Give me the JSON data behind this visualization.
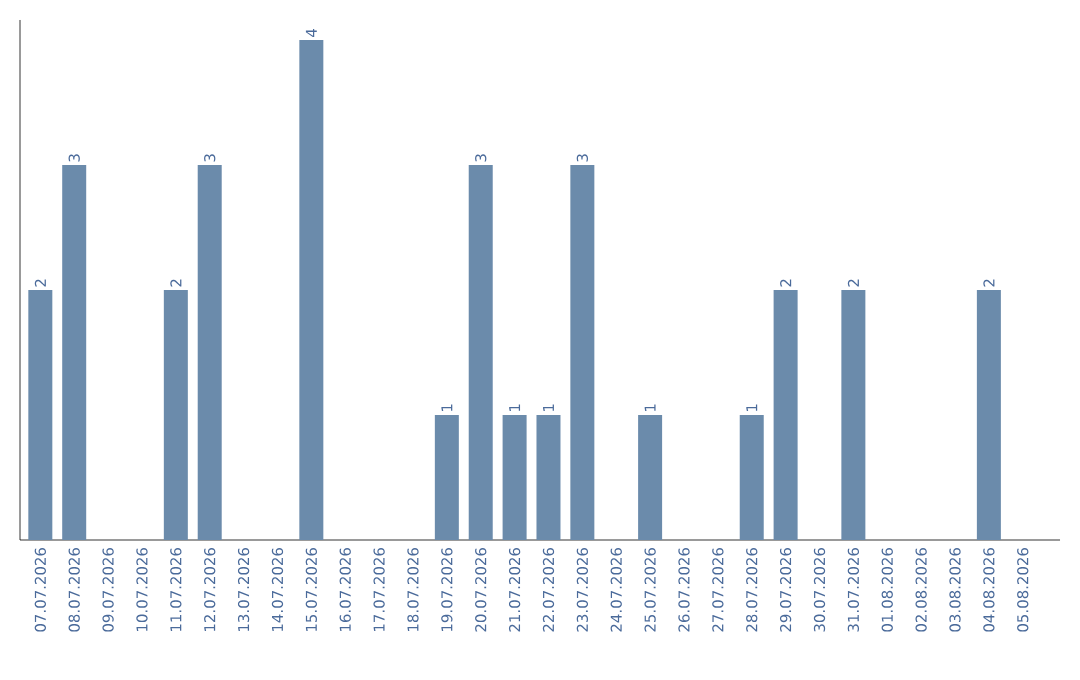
{
  "chart_data": {
    "type": "bar",
    "color": "#6b8bab",
    "categories": [
      "07.07.2026",
      "08.07.2026",
      "09.07.2026",
      "10.07.2026",
      "11.07.2026",
      "12.07.2026",
      "13.07.2026",
      "14.07.2026",
      "15.07.2026",
      "16.07.2026",
      "17.07.2026",
      "18.07.2026",
      "19.07.2026",
      "20.07.2026",
      "21.07.2026",
      "22.07.2026",
      "23.07.2026",
      "24.07.2026",
      "25.07.2026",
      "26.07.2026",
      "27.07.2026",
      "28.07.2026",
      "29.07.2026",
      "30.07.2026",
      "31.07.2026",
      "01.08.2026",
      "02.08.2026",
      "03.08.2026",
      "04.08.2026",
      "05.08.2026"
    ],
    "values": [
      2,
      3,
      0,
      0,
      2,
      3,
      0,
      0,
      4,
      0,
      0,
      0,
      1,
      3,
      1,
      1,
      3,
      0,
      1,
      0,
      0,
      1,
      2,
      0,
      2,
      0,
      0,
      0,
      2,
      0
    ],
    "value_labels": [
      "2",
      "3",
      null,
      null,
      "2",
      "3",
      null,
      null,
      "4",
      null,
      null,
      null,
      "1",
      "3",
      "1",
      "1",
      "3",
      null,
      "1",
      null,
      null,
      "1",
      "2",
      null,
      "2",
      null,
      null,
      null,
      "2",
      null
    ],
    "grid": false
  }
}
